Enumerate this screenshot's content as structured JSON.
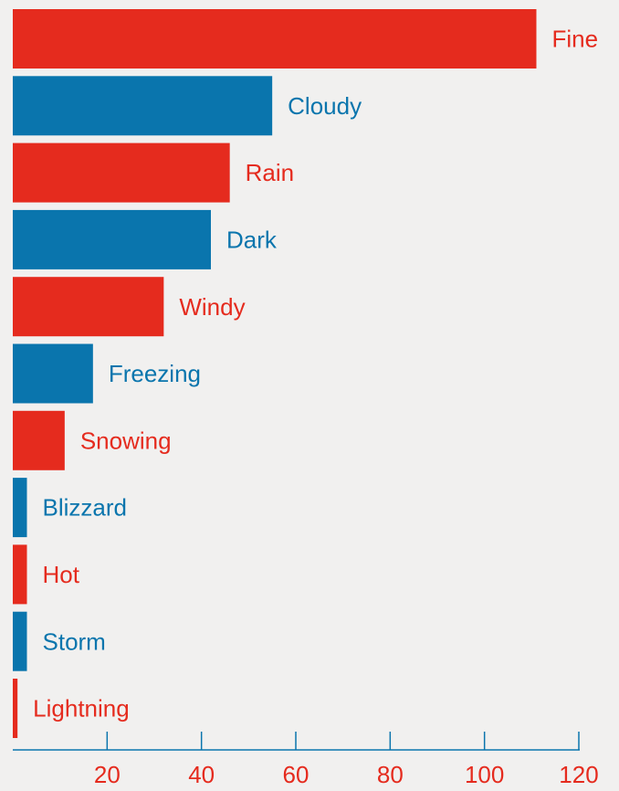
{
  "chart_data": {
    "type": "bar",
    "orientation": "horizontal",
    "title": "",
    "xlabel": "",
    "ylabel": "",
    "xlim": [
      0,
      120
    ],
    "x_ticks": [
      20,
      40,
      60,
      80,
      100,
      120
    ],
    "grid": false,
    "legend": "none",
    "categories": [
      "Fine",
      "Cloudy",
      "Rain",
      "Dark",
      "Windy",
      "Freezing",
      "Snowing",
      "Blizzard",
      "Hot",
      "Storm",
      "Lightning"
    ],
    "values": [
      111,
      55,
      46,
      42,
      32,
      17,
      11,
      3,
      3,
      3,
      1
    ],
    "colors": {
      "red": "#e52b1e",
      "blue": "#0a75ad",
      "axis": "#0a75ad",
      "tick_label": "#e52b1e"
    },
    "bar_color_pattern": [
      "red",
      "blue"
    ]
  }
}
